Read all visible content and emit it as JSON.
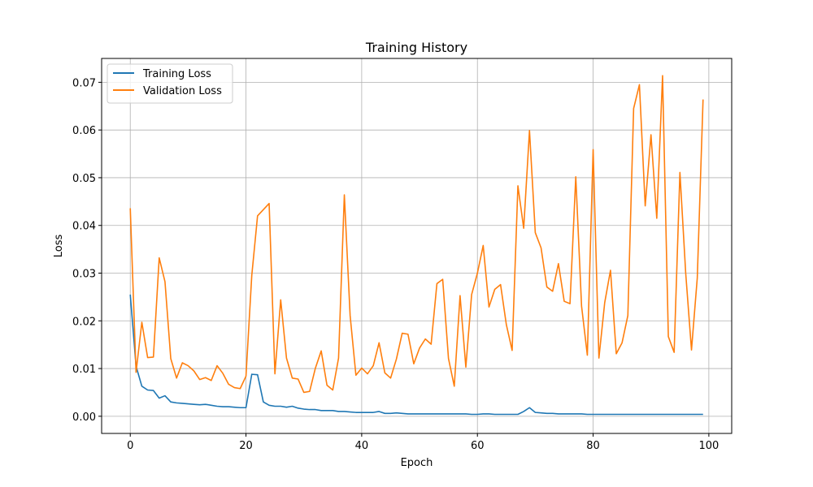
{
  "chart_data": {
    "type": "line",
    "title": "Training History",
    "xlabel": "Epoch",
    "ylabel": "Loss",
    "xlim": [
      -4.95,
      103.95
    ],
    "ylim": [
      -0.0036,
      0.075
    ],
    "xticks": [
      0,
      20,
      40,
      60,
      80,
      100
    ],
    "yticks": [
      0.0,
      0.01,
      0.02,
      0.03,
      0.04,
      0.05,
      0.06,
      0.07
    ],
    "ytick_labels": [
      "0.00",
      "0.01",
      "0.02",
      "0.03",
      "0.04",
      "0.05",
      "0.06",
      "0.07"
    ],
    "grid": true,
    "legend_position": "upper-left",
    "x": [
      0,
      1,
      2,
      3,
      4,
      5,
      6,
      7,
      8,
      9,
      10,
      11,
      12,
      13,
      14,
      15,
      16,
      17,
      18,
      19,
      20,
      21,
      22,
      23,
      24,
      25,
      26,
      27,
      28,
      29,
      30,
      31,
      32,
      33,
      34,
      35,
      36,
      37,
      38,
      39,
      40,
      41,
      42,
      43,
      44,
      45,
      46,
      47,
      48,
      49,
      50,
      51,
      52,
      53,
      54,
      55,
      56,
      57,
      58,
      59,
      60,
      61,
      62,
      63,
      64,
      65,
      66,
      67,
      68,
      69,
      70,
      71,
      72,
      73,
      74,
      75,
      76,
      77,
      78,
      79,
      80,
      81,
      82,
      83,
      84,
      85,
      86,
      87,
      88,
      89,
      90,
      91,
      92,
      93,
      94,
      95,
      96,
      97,
      98,
      99
    ],
    "series": [
      {
        "name": "Training Loss",
        "color": "#1f77b4",
        "values": [
          0.0255,
          0.0105,
          0.0063,
          0.0055,
          0.0054,
          0.0038,
          0.0043,
          0.003,
          0.0028,
          0.0027,
          0.0026,
          0.0025,
          0.0024,
          0.0025,
          0.0023,
          0.0021,
          0.002,
          0.002,
          0.0019,
          0.0018,
          0.0018,
          0.0088,
          0.0087,
          0.003,
          0.0023,
          0.0021,
          0.0021,
          0.0019,
          0.0021,
          0.0017,
          0.0015,
          0.0014,
          0.0014,
          0.0012,
          0.0012,
          0.0012,
          0.001,
          0.001,
          0.0009,
          0.0008,
          0.0008,
          0.0008,
          0.0008,
          0.001,
          0.0006,
          0.0006,
          0.0007,
          0.0006,
          0.0005,
          0.0005,
          0.0005,
          0.0005,
          0.0005,
          0.0005,
          0.0005,
          0.0005,
          0.0005,
          0.0005,
          0.0005,
          0.0004,
          0.0004,
          0.0005,
          0.0005,
          0.0004,
          0.0004,
          0.0004,
          0.0004,
          0.0004,
          0.001,
          0.0018,
          0.0008,
          0.0007,
          0.0006,
          0.0006,
          0.0005,
          0.0005,
          0.0005,
          0.0005,
          0.0005,
          0.0004,
          0.0004,
          0.0004,
          0.0004,
          0.0004,
          0.0004,
          0.0004,
          0.0004,
          0.0004,
          0.0004,
          0.0004,
          0.0004,
          0.0004,
          0.0004,
          0.0004,
          0.0004,
          0.0004,
          0.0004,
          0.0004,
          0.0004,
          0.0004
        ]
      },
      {
        "name": "Validation Loss",
        "color": "#ff7f0e",
        "values": [
          0.0436,
          0.0092,
          0.0197,
          0.0123,
          0.0124,
          0.0332,
          0.0282,
          0.0121,
          0.008,
          0.0112,
          0.0106,
          0.0095,
          0.0077,
          0.0081,
          0.0075,
          0.0106,
          0.009,
          0.0067,
          0.006,
          0.0058,
          0.0084,
          0.0295,
          0.042,
          0.0433,
          0.0446,
          0.0089,
          0.0244,
          0.0122,
          0.008,
          0.0078,
          0.005,
          0.0052,
          0.0101,
          0.0137,
          0.0065,
          0.0055,
          0.0122,
          0.0464,
          0.0211,
          0.0086,
          0.0101,
          0.0089,
          0.0106,
          0.0154,
          0.0091,
          0.008,
          0.012,
          0.0174,
          0.0172,
          0.011,
          0.0143,
          0.0162,
          0.0151,
          0.0278,
          0.0287,
          0.0121,
          0.0063,
          0.0253,
          0.0103,
          0.0255,
          0.03,
          0.0358,
          0.0229,
          0.0266,
          0.0276,
          0.0192,
          0.0138,
          0.0483,
          0.0394,
          0.0599,
          0.0385,
          0.0353,
          0.0271,
          0.0262,
          0.032,
          0.0241,
          0.0236,
          0.0502,
          0.0231,
          0.0128,
          0.0559,
          0.0122,
          0.0238,
          0.0306,
          0.0131,
          0.0154,
          0.0211,
          0.0645,
          0.0695,
          0.0441,
          0.059,
          0.0415,
          0.0714,
          0.0167,
          0.0134,
          0.0511,
          0.03,
          0.0139,
          0.029,
          0.0664
        ]
      }
    ]
  }
}
